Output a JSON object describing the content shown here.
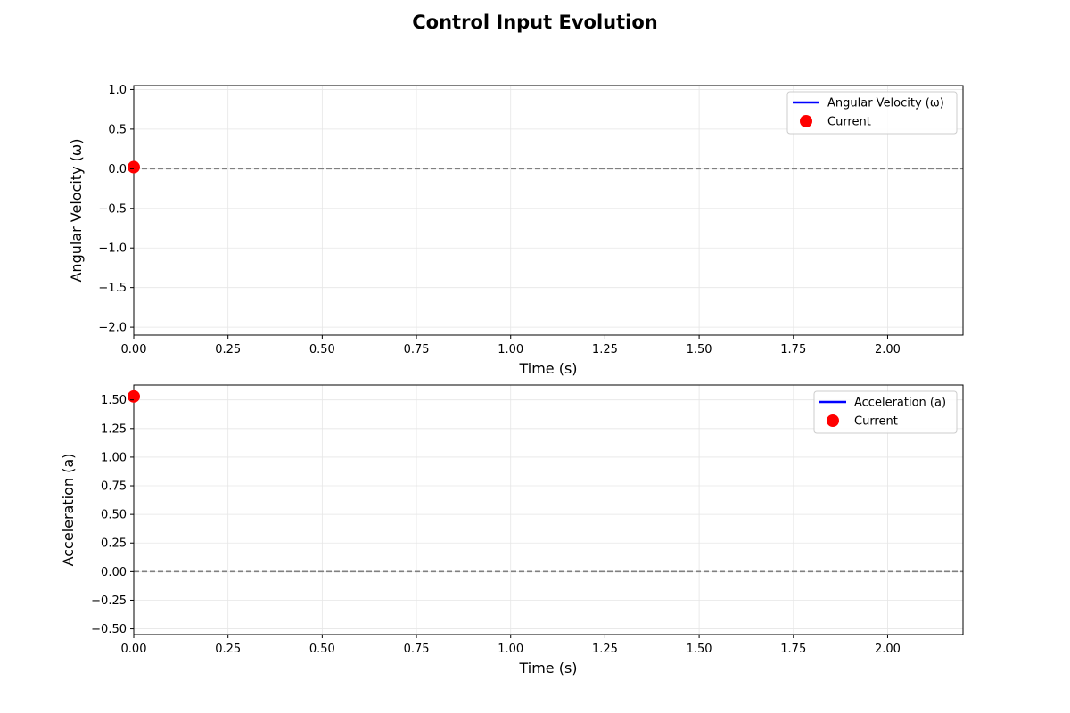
{
  "figure": {
    "title": "Control Input Evolution"
  },
  "colors": {
    "series": "#0000ff",
    "current": "#ff0000",
    "zero_line": "#808080",
    "grid": "#e6e6e6"
  },
  "chart_data": [
    {
      "type": "line",
      "xlabel": "Time (s)",
      "ylabel": "Angular Velocity (ω)",
      "xlim": [
        0,
        2.2
      ],
      "ylim": [
        -2.1,
        1.05
      ],
      "xticks": [
        0.0,
        0.25,
        0.5,
        0.75,
        1.0,
        1.25,
        1.5,
        1.75,
        2.0
      ],
      "xtick_labels": [
        "0.00",
        "0.25",
        "0.50",
        "0.75",
        "1.00",
        "1.25",
        "1.50",
        "1.75",
        "2.00"
      ],
      "yticks": [
        -2.0,
        -1.5,
        -1.0,
        -0.5,
        0.0,
        0.5,
        1.0
      ],
      "ytick_labels": [
        "−2.0",
        "−1.5",
        "−1.0",
        "−0.5",
        "0.0",
        "0.5",
        "1.0"
      ],
      "grid": true,
      "reference_line_y": 0,
      "legend_position": "upper right",
      "series": [
        {
          "name": "Angular Velocity (ω)",
          "kind": "line",
          "x": [
            0
          ],
          "y": [
            0.02
          ]
        },
        {
          "name": "Current",
          "kind": "marker",
          "x": [
            0
          ],
          "y": [
            0.02
          ]
        }
      ]
    },
    {
      "type": "line",
      "xlabel": "Time (s)",
      "ylabel": "Acceleration (a)",
      "xlim": [
        0,
        2.2
      ],
      "ylim": [
        -0.55,
        1.63
      ],
      "xticks": [
        0.0,
        0.25,
        0.5,
        0.75,
        1.0,
        1.25,
        1.5,
        1.75,
        2.0
      ],
      "xtick_labels": [
        "0.00",
        "0.25",
        "0.50",
        "0.75",
        "1.00",
        "1.25",
        "1.50",
        "1.75",
        "2.00"
      ],
      "yticks": [
        -0.5,
        -0.25,
        0.0,
        0.25,
        0.5,
        0.75,
        1.0,
        1.25,
        1.5
      ],
      "ytick_labels": [
        "−0.50",
        "−0.25",
        "0.00",
        "0.25",
        "0.50",
        "0.75",
        "1.00",
        "1.25",
        "1.50"
      ],
      "grid": true,
      "reference_line_y": 0,
      "legend_position": "upper right",
      "series": [
        {
          "name": "Acceleration (a)",
          "kind": "line",
          "x": [
            0
          ],
          "y": [
            1.53
          ]
        },
        {
          "name": "Current",
          "kind": "marker",
          "x": [
            0
          ],
          "y": [
            1.53
          ]
        }
      ]
    }
  ]
}
